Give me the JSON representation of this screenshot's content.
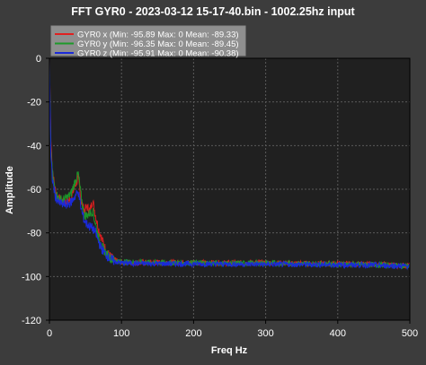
{
  "chart_data": {
    "type": "line",
    "title": "FFT GYR0 - 2023-03-12 15-17-40.bin - 1002.25hz input",
    "xlabel": "Freq Hz",
    "ylabel": "Amplitude",
    "xlim": [
      0,
      500
    ],
    "ylim": [
      -120,
      0
    ],
    "xticks": [
      0,
      100,
      200,
      300,
      400,
      500
    ],
    "yticks": [
      0,
      -20,
      -40,
      -60,
      -80,
      -100,
      -120
    ],
    "grid": true,
    "legend_position": "top-left",
    "colors": {
      "figure_background": "#3c3c3c",
      "plot_background": "#202020",
      "grid": "#5a5a5a"
    },
    "series": [
      {
        "name": "GYR0 x (Min: -95.89 Max: 0 Mean: -89.33)",
        "color": "#e02020",
        "x": [
          0,
          2,
          4,
          6,
          8,
          12,
          18,
          24,
          30,
          36,
          40,
          42,
          44,
          48,
          52,
          56,
          60,
          64,
          68,
          72,
          76,
          80,
          85,
          90,
          100,
          120,
          150,
          200,
          250,
          300,
          350,
          400,
          450,
          500
        ],
        "values": [
          0,
          -38,
          -50,
          -56,
          -60,
          -64,
          -66,
          -66,
          -64,
          -58,
          -55,
          -60,
          -65,
          -70,
          -68,
          -70,
          -65,
          -72,
          -78,
          -82,
          -86,
          -89,
          -91,
          -92.5,
          -93.5,
          -93.7,
          -93.5,
          -93.6,
          -93.8,
          -93.7,
          -94,
          -94.2,
          -94.4,
          -95
        ]
      },
      {
        "name": "GYR0 y (Min: -96.35 Max: 0 Mean: -89.45)",
        "color": "#1c9a2a",
        "x": [
          0,
          2,
          4,
          6,
          8,
          12,
          18,
          24,
          30,
          36,
          40,
          42,
          44,
          48,
          52,
          56,
          60,
          64,
          68,
          72,
          76,
          80,
          85,
          90,
          100,
          120,
          150,
          200,
          250,
          300,
          350,
          400,
          450,
          500
        ],
        "values": [
          0,
          -42,
          -52,
          -57,
          -61,
          -64,
          -65,
          -64,
          -62,
          -56,
          -53,
          -58,
          -63,
          -72,
          -72,
          -71,
          -70,
          -76,
          -82,
          -86,
          -88,
          -90,
          -91.5,
          -92.5,
          -93.2,
          -93.4,
          -93.6,
          -93.7,
          -94,
          -93.8,
          -94.1,
          -94.3,
          -94.6,
          -95.2
        ]
      },
      {
        "name": "GYR0 z (Min: -95.91 Max: 0 Mean: -90.38)",
        "color": "#1a2ad8",
        "x": [
          0,
          2,
          4,
          6,
          8,
          12,
          18,
          24,
          30,
          36,
          40,
          42,
          44,
          48,
          52,
          56,
          60,
          64,
          68,
          72,
          76,
          80,
          85,
          90,
          100,
          120,
          150,
          200,
          250,
          300,
          350,
          400,
          450,
          500
        ],
        "values": [
          0,
          -45,
          -55,
          -59,
          -63,
          -66,
          -67,
          -67,
          -66,
          -63,
          -61,
          -65,
          -69,
          -74,
          -76,
          -77,
          -78,
          -80,
          -84,
          -87,
          -89,
          -90.5,
          -92,
          -93,
          -93.8,
          -94,
          -94.1,
          -94.2,
          -94.3,
          -94.4,
          -94.5,
          -94.6,
          -94.8,
          -95.3
        ]
      }
    ]
  }
}
